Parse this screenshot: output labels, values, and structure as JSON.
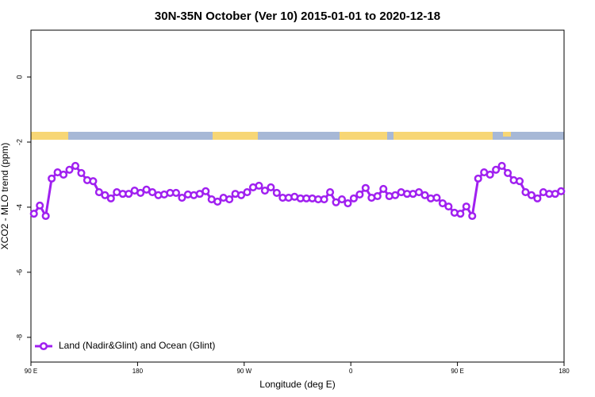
{
  "chart_data": {
    "type": "line",
    "title": "30N-35N October (Ver 10)   2015-01-01 to 2020-12-18",
    "x_label": "Longitude (deg E)",
    "y_label": "XCO2 - MLO trend (ppm)",
    "xlim": [
      90,
      540
    ],
    "ylim": [
      -8.76,
      1.44
    ],
    "xticks": [
      {
        "value": 90,
        "label": "90 E"
      },
      180,
      {
        "value": 270,
        "label": "90 W"
      },
      {
        "value": 360,
        "label": "0"
      },
      {
        "value": 450,
        "label": "90 E"
      },
      {
        "value": 540,
        "label": "180"
      }
    ],
    "yticks": [
      0,
      -2,
      -4,
      -6,
      -8
    ],
    "legend": "bottom-left",
    "x": [
      92.5,
      97.5,
      102.5,
      107.5,
      112.5,
      117.5,
      122.5,
      127.5,
      132.5,
      137.5,
      142.5,
      147.5,
      152.5,
      157.5,
      162.5,
      167.5,
      172.5,
      177.5,
      182.5,
      187.5,
      192.5,
      197.5,
      202.5,
      207.5,
      212.5,
      217.5,
      222.5,
      227.5,
      232.5,
      237.5,
      242.5,
      247.5,
      252.5,
      257.5,
      262.5,
      267.5,
      272.5,
      277.5,
      282.5,
      287.5,
      292.5,
      297.5,
      302.5,
      307.5,
      312.5,
      317.5,
      322.5,
      327.5,
      332.5,
      337.5,
      342.5,
      347.5,
      352.5,
      357.5,
      362.5,
      367.5,
      372.5,
      377.5,
      382.5,
      387.5,
      392.5,
      397.5,
      402.5,
      407.5,
      412.5,
      417.5,
      422.5,
      427.5,
      432.5,
      437.5,
      442.5,
      447.5,
      452.5,
      457.5,
      462.5,
      467.5,
      472.5,
      477.5,
      482.5,
      487.5,
      492.5,
      497.5,
      502.5,
      507.5,
      512.5,
      517.5,
      522.5,
      527.5,
      532.5,
      537.5
    ],
    "series": [
      {
        "name": "Land (Nadir&Glint) and Ocean (Glint)",
        "color": "#a020f0",
        "values": [
          -4.2,
          -3.95,
          -4.27,
          -3.12,
          -2.93,
          -3.0,
          -2.85,
          -2.73,
          -2.95,
          -3.17,
          -3.2,
          -3.54,
          -3.63,
          -3.73,
          -3.54,
          -3.59,
          -3.59,
          -3.49,
          -3.56,
          -3.46,
          -3.54,
          -3.63,
          -3.61,
          -3.56,
          -3.56,
          -3.71,
          -3.61,
          -3.63,
          -3.59,
          -3.51,
          -3.76,
          -3.83,
          -3.71,
          -3.76,
          -3.59,
          -3.63,
          -3.54,
          -3.39,
          -3.34,
          -3.49,
          -3.39,
          -3.56,
          -3.71,
          -3.71,
          -3.68,
          -3.73,
          -3.73,
          -3.73,
          -3.76,
          -3.76,
          -3.54,
          -3.85,
          -3.76,
          -3.88,
          -3.73,
          -3.61,
          -3.41,
          -3.71,
          -3.66,
          -3.44,
          -3.66,
          -3.63,
          -3.54,
          -3.59,
          -3.59,
          -3.54,
          -3.63,
          -3.73,
          -3.71,
          -3.88,
          -3.98,
          -4.17,
          -4.2,
          -3.98,
          -4.27,
          -3.12,
          -2.93,
          -3.0,
          -2.85,
          -2.73,
          -2.95,
          -3.17,
          -3.2,
          -3.54,
          -3.63,
          -3.73,
          -3.54,
          -3.59,
          -3.59,
          -3.51
        ]
      }
    ]
  }
}
